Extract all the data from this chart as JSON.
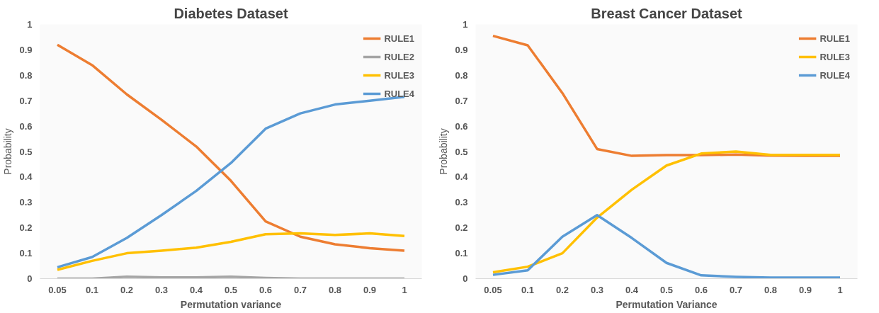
{
  "chart_data": [
    {
      "type": "line",
      "title": "Diabetes Dataset",
      "xlabel": "Permutation variance",
      "ylabel": "Probability",
      "categories": [
        "0.05",
        "0.1",
        "0.2",
        "0.3",
        "0.4",
        "0.5",
        "0.6",
        "0.7",
        "0.8",
        "0.9",
        "1"
      ],
      "series": [
        {
          "name": "RULE1",
          "color": "#ed7d31",
          "values": [
            0.92,
            0.84,
            0.725,
            0.625,
            0.52,
            0.385,
            0.225,
            0.165,
            0.135,
            0.12,
            0.11
          ]
        },
        {
          "name": "RULE2",
          "color": "#a5a5a5",
          "values": [
            0,
            0,
            0.008,
            0.005,
            0.005,
            0.008,
            0.003,
            0,
            0,
            0,
            0
          ]
        },
        {
          "name": "RULE3",
          "color": "#ffc000",
          "values": [
            0.035,
            0.07,
            0.1,
            0.11,
            0.122,
            0.145,
            0.175,
            0.178,
            0.172,
            0.178,
            0.168
          ]
        },
        {
          "name": "RULE4",
          "color": "#5b9bd5",
          "values": [
            0.045,
            0.085,
            0.16,
            0.25,
            0.345,
            0.455,
            0.59,
            0.65,
            0.685,
            0.7,
            0.715
          ]
        }
      ],
      "ylim": [
        0,
        1
      ],
      "yticks": [
        0,
        0.1,
        0.2,
        0.3,
        0.4,
        0.5,
        0.6,
        0.7,
        0.8,
        0.9,
        1
      ],
      "grid": false,
      "legend": "top right",
      "line_style": "solid"
    },
    {
      "type": "line",
      "title": "Breast Cancer Dataset",
      "xlabel": "Permutation Variance",
      "ylabel": "Probability",
      "categories": [
        "0.05",
        "0.1",
        "0.2",
        "0.3",
        "0.4",
        "0.5",
        "0.6",
        "0.7",
        "0.8",
        "0.9",
        "1"
      ],
      "series": [
        {
          "name": "RULE1",
          "color": "#ed7d31",
          "values": [
            0.955,
            0.918,
            0.73,
            0.51,
            0.483,
            0.486,
            0.486,
            0.488,
            0.484,
            0.483,
            0.483
          ]
        },
        {
          "name": "RULE3",
          "color": "#ffc000",
          "values": [
            0.025,
            0.047,
            0.1,
            0.24,
            0.35,
            0.445,
            0.492,
            0.5,
            0.487,
            0.487,
            0.487
          ]
        },
        {
          "name": "RULE4",
          "color": "#5b9bd5",
          "values": [
            0.015,
            0.033,
            0.165,
            0.25,
            0.16,
            0.062,
            0.013,
            0.007,
            0.004,
            0.004,
            0.004
          ]
        }
      ],
      "ylim": [
        0,
        1
      ],
      "yticks": [
        0,
        0.1,
        0.2,
        0.3,
        0.4,
        0.5,
        0.6,
        0.7,
        0.8,
        0.9,
        1
      ],
      "grid": false,
      "legend": "top right",
      "line_style": "solid"
    }
  ]
}
